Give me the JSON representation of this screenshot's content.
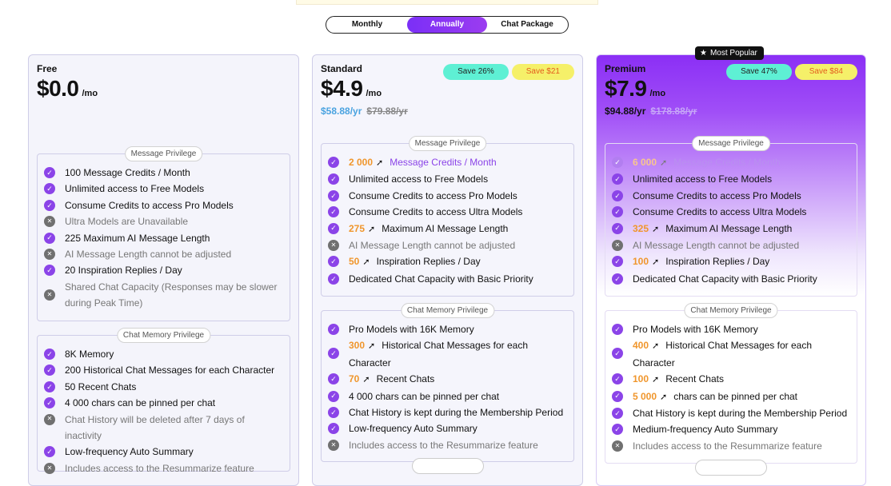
{
  "billing_toggle": {
    "options": [
      "Monthly",
      "Annually",
      "Chat Package"
    ],
    "selected": "Annually"
  },
  "colors": {
    "accent": "#8b44e8",
    "highlight_number": "#f0962c",
    "save_teal": "#5ef0d4",
    "save_yellow": "#f5f069"
  },
  "plans": {
    "free": {
      "name": "Free",
      "price": "$0.0",
      "per": "/mo",
      "message_label": "Message Privilege",
      "message_items": [
        {
          "text": "100 Message Credits / Month",
          "ok": true
        },
        {
          "text": "Unlimited access to Free Models",
          "ok": true
        },
        {
          "text": "Consume Credits to access Pro Models",
          "ok": true
        },
        {
          "text": "Ultra Models are Unavailable",
          "ok": false
        },
        {
          "text": "225 Maximum AI Message Length",
          "ok": true
        },
        {
          "text": "AI Message Length cannot be adjusted",
          "ok": false
        },
        {
          "text": "20 Inspiration Replies / Day",
          "ok": true
        },
        {
          "text": "Shared Chat Capacity (Responses may be slower during Peak Time)",
          "ok": false
        }
      ],
      "memory_label": "Chat Memory Privilege",
      "memory_items": [
        {
          "text": "8K Memory",
          "ok": true
        },
        {
          "text": "200 Historical Chat Messages for each Character",
          "ok": true
        },
        {
          "text": "50 Recent Chats",
          "ok": true
        },
        {
          "text": "4 000 chars can be pinned per chat",
          "ok": true
        },
        {
          "text": "Chat History will be deleted after 7 days of inactivity",
          "ok": false
        },
        {
          "text": "Low-frequency Auto Summary",
          "ok": true
        },
        {
          "text": "Includes access to the Resummarize feature",
          "ok": false
        }
      ]
    },
    "standard": {
      "name": "Standard",
      "price": "$4.9",
      "per": "/mo",
      "yearly_now": "$58.88/yr",
      "yearly_old": "$79.88/yr",
      "save_percent": "Save 26%",
      "save_amount": "Save $21",
      "message_label": "Message Privilege",
      "m1_num": "2 000",
      "m1_text": "Message Credits / Month",
      "m2": "Unlimited access to Free Models",
      "m3": "Consume Credits to access Pro Models",
      "m4": "Consume Credits to access Ultra Models",
      "m5_num": "275",
      "m5_text": "Maximum AI Message Length",
      "m6": "AI Message Length cannot be adjusted",
      "m7_num": "50",
      "m7_text": "Inspiration Replies / Day",
      "m8": "Dedicated Chat Capacity with Basic Priority",
      "memory_label": "Chat Memory Privilege",
      "c1": "Pro Models with 16K Memory",
      "c2_num": "300",
      "c2_text": "Historical Chat Messages for each Character",
      "c3_num": "70",
      "c3_text": "Recent Chats",
      "c4": "4 000 chars can be pinned per chat",
      "c5": "Chat History is kept during the Membership Period",
      "c6": "Low-frequency Auto Summary",
      "c7": "Includes access to the Resummarize feature"
    },
    "premium": {
      "name": "Premium",
      "popular": "Most Popular",
      "price": "$7.9",
      "per": "/mo",
      "yearly_now": "$94.88/yr",
      "yearly_old": "$178.88/yr",
      "save_percent": "Save 47%",
      "save_amount": "Save $84",
      "message_label": "Message Privilege",
      "m1_num": "6 000",
      "m1_text": "Message Credits / Month",
      "m2": "Unlimited access to Free Models",
      "m3": "Consume Credits to access Pro Models",
      "m4": "Consume Credits to access Ultra Models",
      "m5_num": "325",
      "m5_text": "Maximum AI Message Length",
      "m6": "AI Message Length cannot be adjusted",
      "m7_num": "100",
      "m7_text": "Inspiration Replies / Day",
      "m8": "Dedicated Chat Capacity with Basic Priority",
      "memory_label": "Chat Memory Privilege",
      "c1": "Pro Models with 16K Memory",
      "c2_num": "400",
      "c2_text": "Historical Chat Messages for each Character",
      "c3_num": "100",
      "c3_text": "Recent Chats",
      "c4_num": "5 000",
      "c4_text": "chars can be pinned per chat",
      "c5": "Chat History is kept during the Membership Period",
      "c6": "Medium-frequency Auto Summary",
      "c7": "Includes access to the Resummarize feature"
    }
  }
}
